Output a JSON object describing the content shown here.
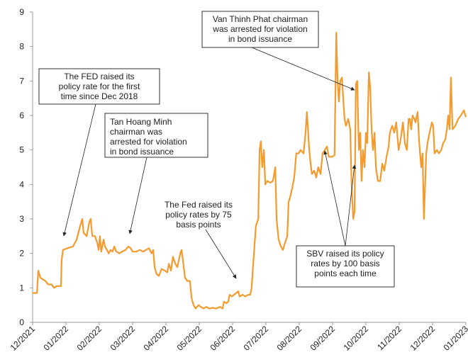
{
  "chart_data": {
    "type": "line",
    "xlim": [
      0,
      13
    ],
    "xticks": [
      {
        "value": 0,
        "label": "12/2021"
      },
      {
        "value": 1,
        "label": "01/2022"
      },
      {
        "value": 2,
        "label": "02/2022"
      },
      {
        "value": 3,
        "label": "03/2022"
      },
      {
        "value": 4,
        "label": "04/2022"
      },
      {
        "value": 5,
        "label": "05/2022"
      },
      {
        "value": 6,
        "label": "06/2022"
      },
      {
        "value": 7,
        "label": "07/2022"
      },
      {
        "value": 8,
        "label": "08/2022"
      },
      {
        "value": 9,
        "label": "09/2022"
      },
      {
        "value": 10,
        "label": "10/2022"
      },
      {
        "value": 11,
        "label": "11/2022"
      },
      {
        "value": 12,
        "label": "12/2022"
      },
      {
        "value": 13,
        "label": "01/2023"
      }
    ],
    "ylim": [
      0,
      9
    ],
    "yticks": [
      0,
      1,
      2,
      3,
      4,
      5,
      6,
      7,
      8,
      9
    ],
    "grid": false,
    "series": [
      {
        "color": "#f39b2f",
        "x": [
          0,
          0.13,
          0.17,
          0.23,
          0.3,
          0.38,
          0.47,
          0.57,
          0.64,
          0.72,
          0.85,
          0.87,
          0.91,
          1.04,
          1.21,
          1.32,
          1.43,
          1.49,
          1.53,
          1.62,
          1.7,
          1.74,
          1.79,
          1.87,
          1.94,
          1.98,
          2.02,
          2.06,
          2.13,
          2.17,
          2.23,
          2.28,
          2.34,
          2.4,
          2.45,
          2.51,
          2.6,
          2.68,
          2.79,
          2.87,
          2.94,
          3.0,
          3.11,
          3.21,
          3.32,
          3.4,
          3.49,
          3.57,
          3.62,
          3.66,
          3.72,
          3.79,
          3.87,
          3.96,
          4.04,
          4.09,
          4.15,
          4.21,
          4.28,
          4.34,
          4.43,
          4.47,
          4.51,
          4.57,
          4.64,
          4.72,
          4.77,
          4.83,
          4.89,
          4.98,
          5.04,
          5.13,
          5.21,
          5.3,
          5.4,
          5.51,
          5.62,
          5.7,
          5.74,
          5.81,
          5.87,
          5.91,
          5.98,
          6.04,
          6.11,
          6.17,
          6.21,
          6.3,
          6.38,
          6.47,
          6.53,
          6.57,
          6.64,
          6.7,
          6.77,
          6.81,
          6.85,
          6.89,
          6.94,
          6.98,
          7.04,
          7.13,
          7.21,
          7.28,
          7.32,
          7.38,
          7.45,
          7.51,
          7.57,
          7.64,
          7.68,
          7.72,
          7.79,
          7.85,
          7.91,
          7.98,
          8.04,
          8.13,
          8.19,
          8.23,
          8.3,
          8.34,
          8.38,
          8.45,
          8.51,
          8.57,
          8.64,
          8.7,
          8.77,
          8.83,
          8.89,
          8.98,
          9.06,
          9.11,
          9.15,
          9.19,
          9.23,
          9.28,
          9.32,
          9.36,
          9.4,
          9.47,
          9.53,
          9.57,
          9.62,
          9.66,
          9.7,
          9.74,
          9.79,
          9.83,
          9.87,
          9.91,
          9.96,
          10.0,
          10.04,
          10.09,
          10.13,
          10.17,
          10.21,
          10.26,
          10.3,
          10.36,
          10.43,
          10.49,
          10.55,
          10.62,
          10.68,
          10.72,
          10.79,
          10.85,
          10.91,
          10.98,
          11.04,
          11.11,
          11.17,
          11.23,
          11.28,
          11.32,
          11.36,
          11.4,
          11.45,
          11.49,
          11.55,
          11.6,
          11.66,
          11.7,
          11.74,
          11.81,
          11.85,
          11.91,
          11.98,
          12.02,
          12.06,
          12.13,
          12.19,
          12.26,
          12.32,
          12.38,
          12.43,
          12.47,
          12.51,
          12.55,
          12.6,
          12.68,
          12.77,
          12.85,
          12.94,
          13.0
        ],
        "values": [
          0.85,
          0.85,
          1.5,
          1.3,
          1.25,
          1.2,
          1.1,
          1.1,
          1.0,
          1.05,
          1.05,
          1.8,
          2.1,
          2.15,
          2.2,
          2.4,
          2.8,
          3.0,
          2.6,
          2.5,
          2.9,
          3.0,
          2.5,
          2.5,
          2.3,
          2.1,
          2.5,
          2.05,
          2.4,
          2.2,
          2.1,
          2.0,
          2.1,
          2.05,
          2.2,
          2.05,
          2.0,
          2.05,
          2.1,
          2.2,
          2.15,
          2.05,
          2.05,
          2.1,
          2.05,
          2.1,
          2.15,
          2.0,
          2.1,
          1.6,
          1.4,
          1.35,
          1.55,
          1.5,
          1.45,
          1.7,
          1.5,
          1.9,
          1.7,
          1.6,
          2.0,
          2.1,
          1.8,
          1.3,
          1.2,
          1.2,
          0.7,
          0.5,
          0.4,
          0.5,
          0.45,
          0.4,
          0.45,
          0.4,
          0.42,
          0.4,
          0.45,
          0.4,
          0.6,
          0.55,
          0.6,
          0.8,
          0.75,
          0.8,
          0.85,
          0.9,
          0.75,
          0.8,
          0.75,
          0.8,
          0.8,
          1.0,
          2.0,
          2.8,
          3.0,
          5.0,
          5.25,
          4.5,
          5.0,
          4.0,
          4.1,
          4.05,
          4.1,
          4.5,
          3.0,
          2.4,
          2.2,
          2.1,
          2.3,
          2.5,
          3.5,
          3.6,
          3.9,
          4.2,
          4.9,
          4.9,
          5.0,
          4.9,
          5.5,
          6.1,
          5.0,
          4.6,
          4.3,
          4.4,
          4.2,
          4.5,
          4.3,
          4.9,
          5.0,
          5.1,
          4.8,
          4.8,
          4.85,
          8.4,
          7.0,
          6.4,
          7.0,
          7.1,
          6.5,
          5.9,
          5.7,
          5.9,
          5.6,
          4.0,
          3.0,
          3.2,
          6.9,
          7.0,
          5.0,
          5.5,
          4.1,
          5.0,
          4.5,
          5.5,
          5.2,
          7.25,
          6.8,
          5.6,
          5.0,
          5.5,
          4.5,
          4.1,
          4.1,
          4.6,
          4.4,
          4.8,
          5.1,
          5.5,
          5.7,
          5.5,
          5.8,
          5.0,
          5.3,
          5.8,
          5.2,
          5.0,
          5.9,
          5.9,
          5.6,
          6.0,
          5.9,
          5.8,
          6.1,
          5.2,
          4.5,
          4.9,
          3.0,
          4.9,
          5.2,
          5.5,
          5.8,
          5.7,
          4.9,
          5.0,
          4.9,
          5.0,
          5.2,
          5.3,
          5.6,
          6.0,
          5.6,
          7.1,
          5.6,
          5.7,
          5.9,
          6.0,
          6.15,
          5.95
        ]
      }
    ],
    "annotations": [
      {
        "lines": [
          "The FED raised its",
          "policy rate for the first",
          "time since Dec 2018"
        ]
      },
      {
        "lines": [
          "Tan Hoang Minh",
          "chairman was",
          "arrested for violation",
          "in bond issuance"
        ]
      },
      {
        "lines": [
          "The Fed raised its",
          "policy rates by 75",
          "basis points"
        ]
      },
      {
        "lines": [
          "Van Thinh Phat chairman",
          "was arrested for violation",
          "in bond issuance"
        ]
      },
      {
        "lines": [
          "SBV raised its policy",
          "rates by 100 basis",
          "points each time"
        ]
      }
    ]
  }
}
